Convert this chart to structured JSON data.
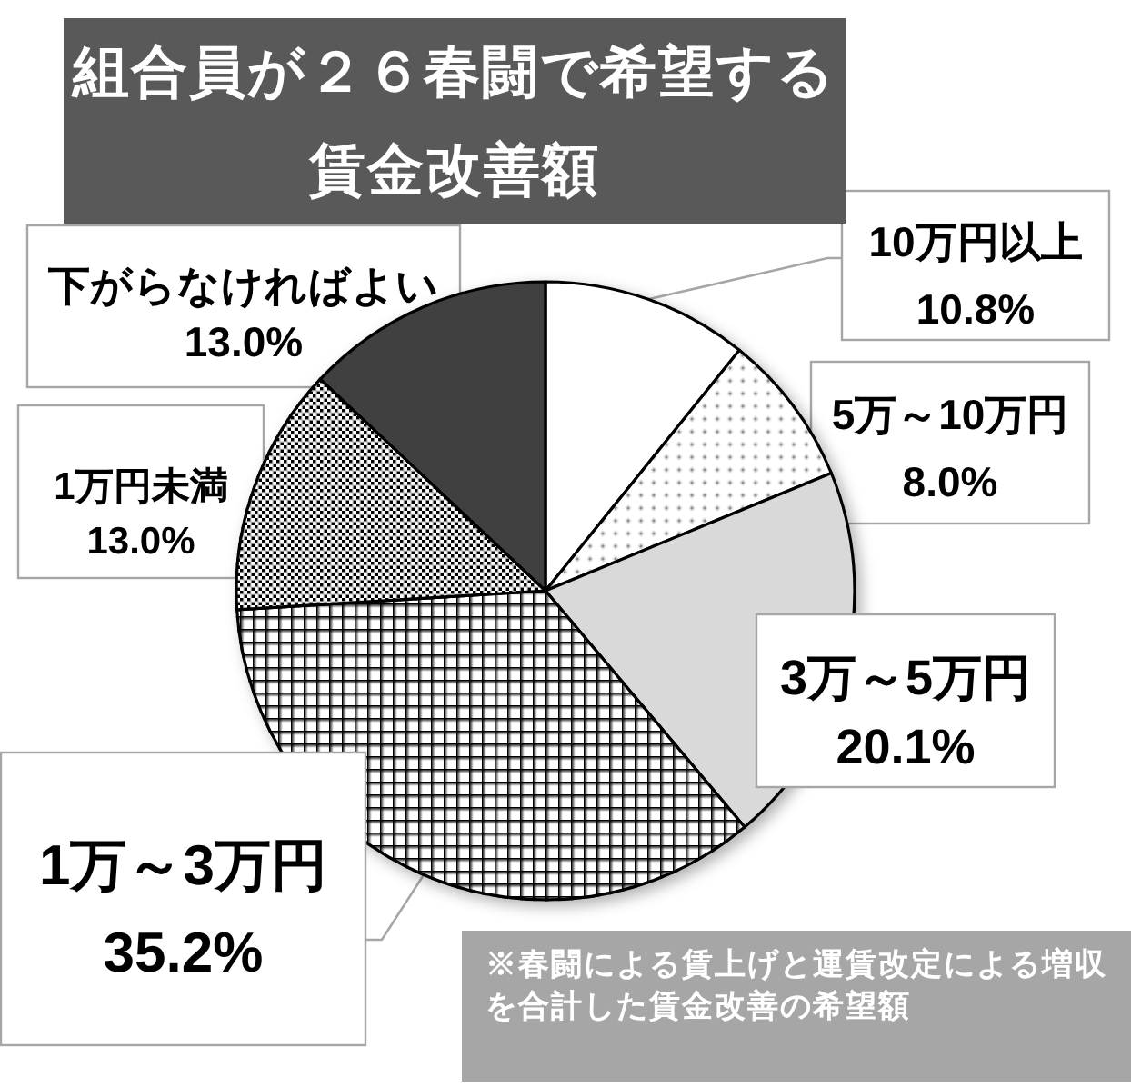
{
  "chart_data": {
    "type": "pie",
    "title": "組合員が２６春闘で希望する賃金改善額",
    "categories": [
      "10万円以上",
      "5万～10万円",
      "3万～5万円",
      "1万～3万円",
      "1万円未満",
      "下がらなければよい"
    ],
    "values": [
      10.8,
      8.0,
      20.1,
      35.2,
      13.0,
      13.0
    ],
    "colors": [
      "#ffffff",
      "#ffffff",
      "#d9d9d9",
      "#ffffff",
      "#ffffff",
      "#404040"
    ],
    "value_labels": [
      "10.8%",
      "8.0%",
      "20.1%",
      "35.2%",
      "13.0%",
      "13.0%"
    ],
    "annotations": [
      "※春闘による賃上げと運賃改定による増収を合計した賃金改善の希望額"
    ]
  }
}
